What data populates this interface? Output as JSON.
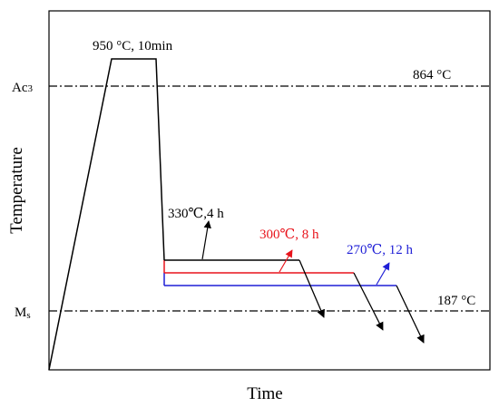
{
  "colors": {
    "black": "#000000",
    "red": "#e8141c",
    "blue": "#1f1fd6"
  },
  "axes": {
    "xlabel": "Time",
    "ylabel": "Temperature"
  },
  "levels": {
    "ac3": {
      "symbol": "Ac",
      "subscript": "3",
      "value_label": "864 °C"
    },
    "ms": {
      "symbol": "M",
      "subscript": "s",
      "value_label": "187 °C"
    }
  },
  "austenitize": {
    "label": "950 °C, 10min"
  },
  "treatments": [
    {
      "label": "330℃,4 h",
      "color": "black"
    },
    {
      "label": "300℃, 8 h",
      "color": "red"
    },
    {
      "label": "270℃, 12 h",
      "color": "blue"
    }
  ]
}
